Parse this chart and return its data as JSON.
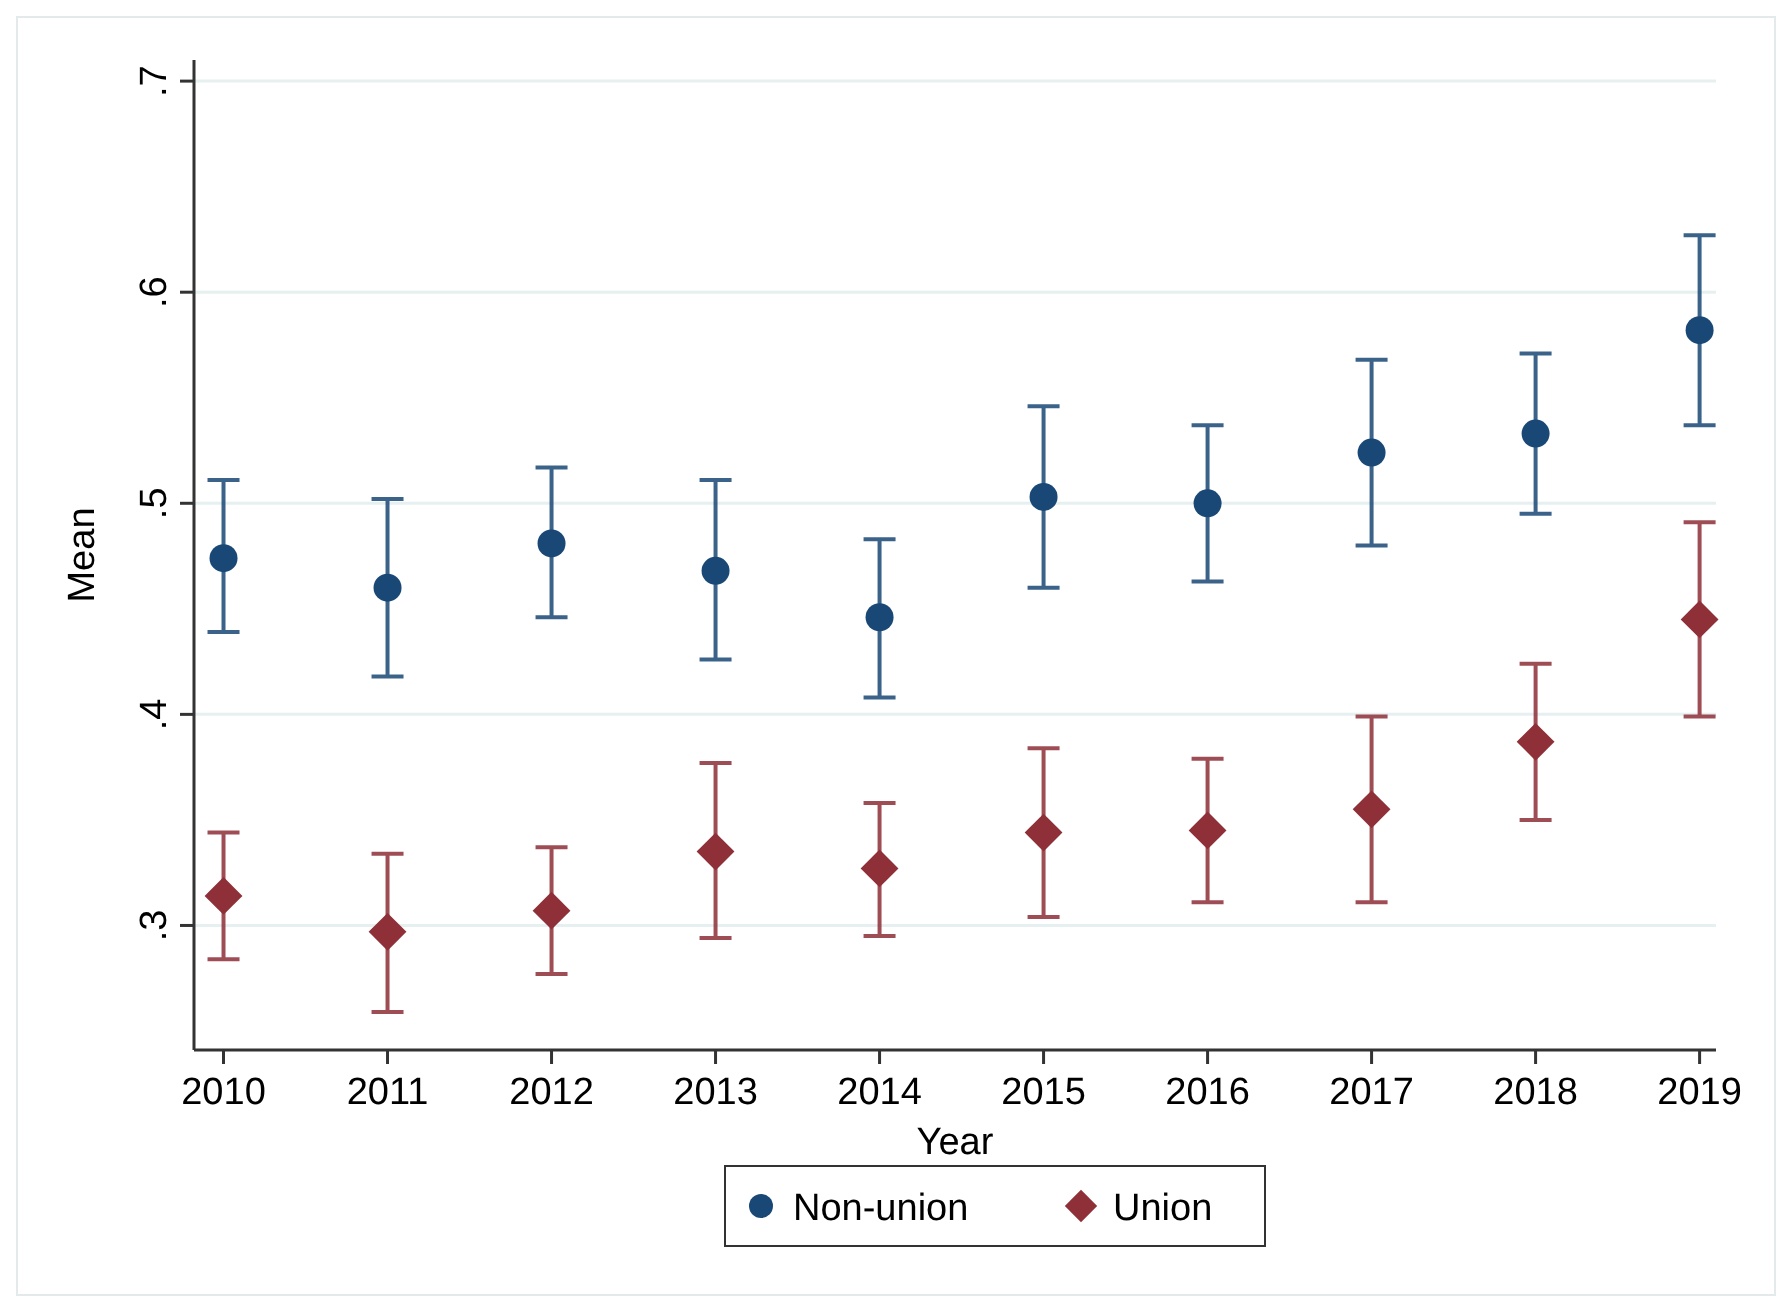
{
  "chart_data": {
    "type": "scatter",
    "xlabel": "Year",
    "ylabel": "Mean",
    "x": [
      2010,
      2011,
      2012,
      2013,
      2014,
      2015,
      2016,
      2017,
      2018,
      2019
    ],
    "xlim": [
      2009.82,
      2019.1
    ],
    "xticks": [
      2010,
      2011,
      2012,
      2013,
      2014,
      2015,
      2016,
      2017,
      2018,
      2019
    ],
    "ylim": [
      0.241,
      0.71
    ],
    "yticks": [
      {
        "value": 0.3,
        "label": ".3"
      },
      {
        "value": 0.4,
        "label": ".4"
      },
      {
        "value": 0.5,
        "label": ".5"
      },
      {
        "value": 0.6,
        "label": ".6"
      },
      {
        "value": 0.7,
        "label": ".7"
      }
    ],
    "grid": "y",
    "legend": "bottom",
    "series": [
      {
        "name": "Non-union",
        "color": "#1a4876",
        "marker": "circle",
        "values": [
          0.474,
          0.46,
          0.481,
          0.468,
          0.446,
          0.503,
          0.5,
          0.524,
          0.533,
          0.582
        ],
        "errors": [
          [
            0.439,
            0.511
          ],
          [
            0.418,
            0.502
          ],
          [
            0.446,
            0.517
          ],
          [
            0.426,
            0.511
          ],
          [
            0.408,
            0.483
          ],
          [
            0.46,
            0.546
          ],
          [
            0.463,
            0.537
          ],
          [
            0.48,
            0.568
          ],
          [
            0.495,
            0.571
          ],
          [
            0.537,
            0.627
          ]
        ]
      },
      {
        "name": "Union",
        "color": "#8f2f38",
        "marker": "diamond",
        "values": [
          0.314,
          0.297,
          0.307,
          0.335,
          0.327,
          0.344,
          0.345,
          0.355,
          0.387,
          0.445
        ],
        "errors": [
          [
            0.284,
            0.344
          ],
          [
            0.259,
            0.334
          ],
          [
            0.277,
            0.337
          ],
          [
            0.294,
            0.377
          ],
          [
            0.295,
            0.358
          ],
          [
            0.304,
            0.384
          ],
          [
            0.311,
            0.379
          ],
          [
            0.311,
            0.399
          ],
          [
            0.35,
            0.424
          ],
          [
            0.399,
            0.491
          ]
        ]
      }
    ]
  }
}
